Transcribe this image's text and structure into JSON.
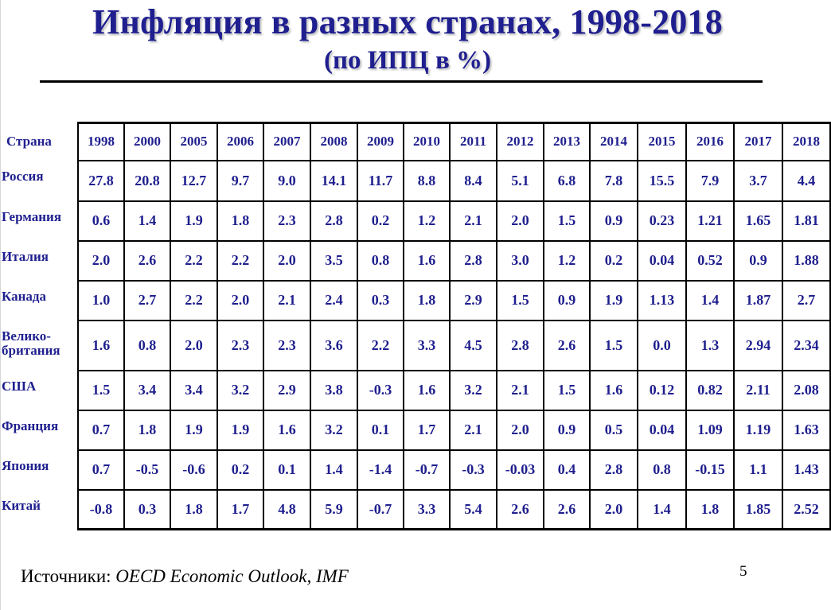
{
  "slide": {
    "title": "Инфляция в разных странах, 1998-2018",
    "subtitle": "(по ИПЦ в %)",
    "sources_label": "Источники:",
    "sources_text": "OECD Economic Outlook, IMF",
    "page_number": "5"
  },
  "table": {
    "header_label": "Страна",
    "years": [
      "1998",
      "2000",
      "2005",
      "2006",
      "2007",
      "2008",
      "2009",
      "2010",
      "2011",
      "2012",
      "2013",
      "2014",
      "2015",
      "2016",
      "2017",
      "2018"
    ],
    "rows": [
      {
        "country": "Россия",
        "values": [
          "27.8",
          "20.8",
          "12.7",
          "9.7",
          "9.0",
          "14.1",
          "11.7",
          "8.8",
          "8.4",
          "5.1",
          "6.8",
          "7.8",
          "15.5",
          "7.9",
          "3.7",
          "4.4"
        ]
      },
      {
        "country": "Германия",
        "values": [
          "0.6",
          "1.4",
          "1.9",
          "1.8",
          "2.3",
          "2.8",
          "0.2",
          "1.2",
          "2.1",
          "2.0",
          "1.5",
          "0.9",
          "0.23",
          "1.21",
          "1.65",
          "1.81"
        ]
      },
      {
        "country": "Италия",
        "values": [
          "2.0",
          "2.6",
          "2.2",
          "2.2",
          "2.0",
          "3.5",
          "0.8",
          "1.6",
          "2.8",
          "3.0",
          "1.2",
          "0.2",
          "0.04",
          "0.52",
          "0.9",
          "1.88"
        ]
      },
      {
        "country": "Канада",
        "values": [
          "1.0",
          "2.7",
          "2.2",
          "2.0",
          "2.1",
          "2.4",
          "0.3",
          "1.8",
          "2.9",
          "1.5",
          "0.9",
          "1.9",
          "1.13",
          "1.4",
          "1.87",
          "2.7"
        ]
      },
      {
        "country": "Велико-\nбритания",
        "values": [
          "1.6",
          "0.8",
          "2.0",
          "2.3",
          "2.3",
          "3.6",
          "2.2",
          "3.3",
          "4.5",
          "2.8",
          "2.6",
          "1.5",
          "0.0",
          "1.3",
          "2.94",
          "2.34"
        ]
      },
      {
        "country": "США",
        "values": [
          "1.5",
          "3.4",
          "3.4",
          "3.2",
          "2.9",
          "3.8",
          "-0.3",
          "1.6",
          "3.2",
          "2.1",
          "1.5",
          "1.6",
          "0.12",
          "0.82",
          "2.11",
          "2.08"
        ]
      },
      {
        "country": "Франция",
        "values": [
          "0.7",
          "1.8",
          "1.9",
          "1.9",
          "1.6",
          "3.2",
          "0.1",
          "1.7",
          "2.1",
          "2.0",
          "0.9",
          "0.5",
          "0.04",
          "1.09",
          "1.19",
          "1.63"
        ]
      },
      {
        "country": "Япония",
        "values": [
          "0.7",
          "-0.5",
          "-0.6",
          "0.2",
          "0.1",
          "1.4",
          "-1.4",
          "-0.7",
          "-0.3",
          "-0.03",
          "0.4",
          "2.8",
          "0.8",
          "-0.15",
          "1.1",
          "1.43"
        ]
      },
      {
        "country": "Китай",
        "values": [
          "-0.8",
          "0.3",
          "1.8",
          "1.7",
          "4.8",
          "5.9",
          "-0.7",
          "3.3",
          "5.4",
          "2.6",
          "2.6",
          "2.0",
          "1.4",
          "1.8",
          "1.85",
          "2.52"
        ]
      }
    ]
  }
}
